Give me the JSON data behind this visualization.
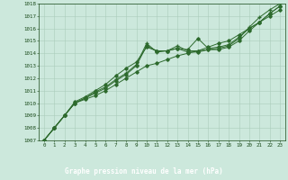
{
  "title": "Graphe pression niveau de la mer (hPa)",
  "x_hours": [
    0,
    1,
    2,
    3,
    4,
    5,
    6,
    7,
    8,
    9,
    10,
    11,
    12,
    13,
    14,
    15,
    16,
    17,
    18,
    19,
    20,
    21,
    22,
    23
  ],
  "line1": [
    1007,
    1008,
    1009,
    1010,
    1010.3,
    1010.6,
    1011.0,
    1011.5,
    1012.0,
    1012.5,
    1013.0,
    1013.2,
    1013.5,
    1013.8,
    1014.0,
    1014.2,
    1014.5,
    1014.8,
    1015.0,
    1015.5,
    1016.0,
    1016.5,
    1017.0,
    1017.5
  ],
  "line2": [
    1007,
    1008,
    1009,
    1010.0,
    1010.4,
    1010.8,
    1011.2,
    1011.8,
    1012.3,
    1013.0,
    1014.6,
    1014.2,
    1014.2,
    1014.4,
    1014.1,
    1014.1,
    1014.3,
    1014.3,
    1014.5,
    1015.0,
    1015.8,
    1016.5,
    1017.2,
    1017.8
  ],
  "line3": [
    1007,
    1008,
    1009,
    1010.0,
    1010.4,
    1010.9,
    1011.3,
    1011.9,
    1012.4,
    1013.1,
    1014.8,
    1014.1,
    1014.2,
    1014.6,
    1014.2,
    1014.2,
    1014.3,
    1014.4,
    1014.6,
    1015.2,
    1016.1,
    1016.9,
    1017.5,
    1018.0
  ],
  "line4": [
    1007,
    1008,
    1009,
    1010.1,
    1010.5,
    1011.0,
    1011.5,
    1012.2,
    1012.8,
    1013.3,
    1014.5,
    1014.2,
    1014.2,
    1014.4,
    1014.3,
    1015.2,
    1014.4,
    1014.5,
    1014.7,
    1015.3,
    1016.0,
    1016.5,
    1017.2,
    1017.8
  ],
  "line_color": "#2d6a2d",
  "bg_color": "#cce8dc",
  "grid_color": "#aaccbb",
  "text_color": "#1a4a1a",
  "xlabel_bg": "#2d6a2d",
  "xlabel_text": "#ffffff",
  "ylim": [
    1007,
    1018
  ],
  "yticks": [
    1007,
    1008,
    1009,
    1010,
    1011,
    1012,
    1013,
    1014,
    1015,
    1016,
    1017,
    1018
  ],
  "xticks": [
    0,
    1,
    2,
    3,
    4,
    5,
    6,
    7,
    8,
    9,
    10,
    11,
    12,
    13,
    14,
    15,
    16,
    17,
    18,
    19,
    20,
    21,
    22,
    23
  ]
}
